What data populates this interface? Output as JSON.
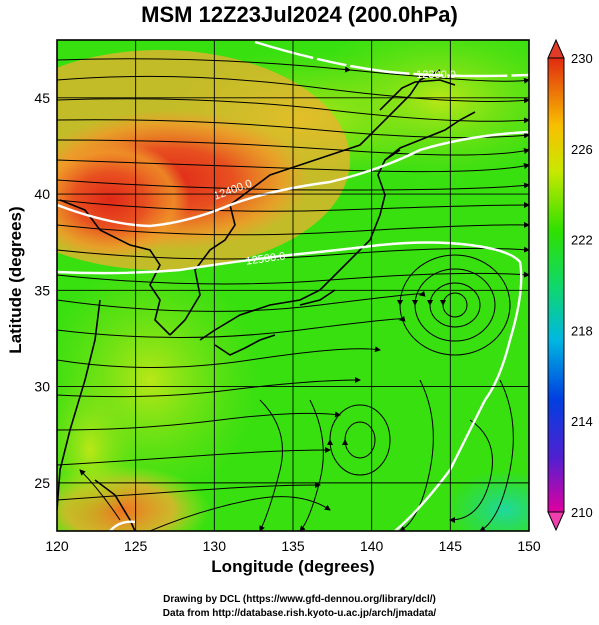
{
  "title": "MSM 12Z23Jul2024 (200.0hPa)",
  "chart_data": {
    "type": "heatmap",
    "xlabel": "Longitude (degrees)",
    "ylabel": "Latitude  (degrees)",
    "xlim": [
      120,
      150
    ],
    "ylim": [
      22.5,
      48
    ],
    "x_ticks": [
      "120",
      "125",
      "130",
      "135",
      "140",
      "145",
      "150"
    ],
    "y_ticks": [
      "25",
      "30",
      "35",
      "40",
      "45"
    ],
    "contour_labels": [
      "12300.0",
      "12400.0",
      "12500.0"
    ],
    "colorbar": {
      "min": 210,
      "max": 230,
      "ticks": [
        "230",
        "226",
        "222",
        "218",
        "214",
        "210"
      ],
      "colors": [
        "#e8008a",
        "#0044d8",
        "#00c8d0",
        "#10d040",
        "#b0e000",
        "#f0e000",
        "#f08000",
        "#e02010"
      ]
    }
  },
  "footer": {
    "line1": "Drawing by DCL (https://www.gfd-dennou.org/library/dcl/)",
    "line2": "Data from http://database.rish.kyoto-u.ac.jp/arch/jmadata/"
  }
}
